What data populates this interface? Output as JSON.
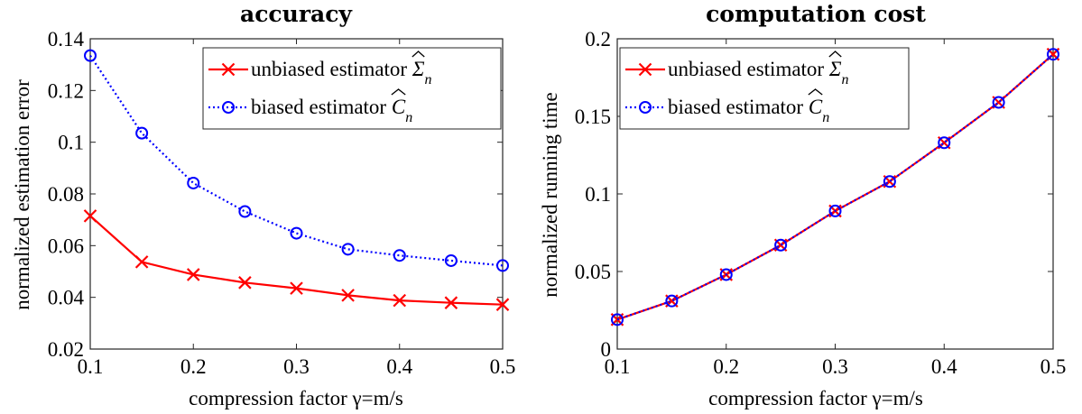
{
  "chart_data": [
    {
      "type": "line",
      "title": "accuracy",
      "xlabel": "compression factor γ=m/s",
      "ylabel": "normalized estimation error",
      "xlim": [
        0.1,
        0.5
      ],
      "ylim": [
        0.02,
        0.14
      ],
      "xticks": [
        "0.1",
        "0.2",
        "0.3",
        "0.4",
        "0.5"
      ],
      "yticks": [
        "0.02",
        "0.04",
        "0.06",
        "0.08",
        "0.1",
        "0.12",
        "0.14"
      ],
      "legend_position": "top-right",
      "grid": false,
      "x": [
        0.1,
        0.15,
        0.2,
        0.25,
        0.3,
        0.35,
        0.4,
        0.45,
        0.5
      ],
      "series": [
        {
          "name": "unbiased estimator Σ̂n",
          "legend_text": "unbiased estimator",
          "legend_symbol": "Σ",
          "legend_subscript": "n",
          "color": "#ff0000",
          "marker": "x",
          "line_style": "solid",
          "values": [
            0.0715,
            0.0537,
            0.0488,
            0.0457,
            0.0435,
            0.0408,
            0.0388,
            0.0379,
            0.0372
          ]
        },
        {
          "name": "biased estimator Ĉn",
          "legend_text": "biased estimator",
          "legend_symbol": "C",
          "legend_subscript": "n",
          "color": "#0000ff",
          "marker": "o",
          "line_style": "dotted",
          "values": [
            0.1335,
            0.1035,
            0.0842,
            0.0732,
            0.0648,
            0.0586,
            0.0562,
            0.0542,
            0.0523
          ]
        }
      ]
    },
    {
      "type": "line",
      "title": "computation cost",
      "xlabel": "compression factor γ=m/s",
      "ylabel": "normalized running time",
      "xlim": [
        0.1,
        0.5
      ],
      "ylim": [
        0,
        0.2
      ],
      "xticks": [
        "0.1",
        "0.2",
        "0.3",
        "0.4",
        "0.5"
      ],
      "yticks": [
        "0",
        "0.05",
        "0.1",
        "0.15",
        "0.2"
      ],
      "legend_position": "top-left",
      "grid": false,
      "x": [
        0.1,
        0.15,
        0.2,
        0.25,
        0.3,
        0.35,
        0.4,
        0.45,
        0.5
      ],
      "series": [
        {
          "name": "unbiased estimator Σ̂n",
          "legend_text": "unbiased estimator",
          "legend_symbol": "Σ",
          "legend_subscript": "n",
          "color": "#ff0000",
          "marker": "x",
          "line_style": "solid",
          "values": [
            0.019,
            0.031,
            0.048,
            0.067,
            0.089,
            0.108,
            0.133,
            0.159,
            0.19
          ]
        },
        {
          "name": "biased estimator Ĉn",
          "legend_text": "biased estimator",
          "legend_symbol": "C",
          "legend_subscript": "n",
          "color": "#0000ff",
          "marker": "o",
          "line_style": "dotted",
          "values": [
            0.019,
            0.031,
            0.048,
            0.067,
            0.089,
            0.108,
            0.133,
            0.159,
            0.19
          ]
        }
      ]
    }
  ]
}
